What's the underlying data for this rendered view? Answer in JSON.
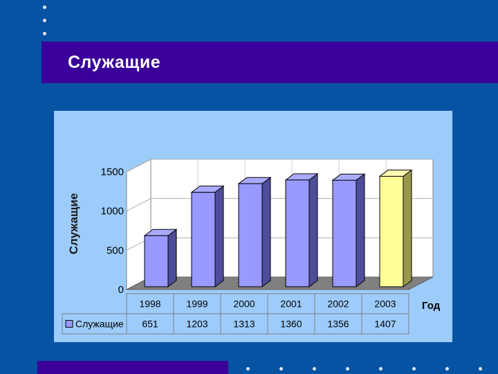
{
  "slide": {
    "title": "Служащие"
  },
  "colors": {
    "background": "#0753a3",
    "band": "#3a0099",
    "panel": "#9dccfa",
    "bar": "#9999ff",
    "highlight_bar": "#ffff99"
  },
  "chart_data": {
    "type": "bar",
    "categories": [
      "1998",
      "1999",
      "2000",
      "2001",
      "2002",
      "2003"
    ],
    "series": [
      {
        "name": "Служащие",
        "values": [
          651,
          1203,
          1313,
          1360,
          1356,
          1407
        ]
      }
    ],
    "highlight_category": "2003",
    "ylabel": "Служащие",
    "xlabel": "Год",
    "ylim": [
      0,
      1500
    ],
    "yticks": [
      0,
      500,
      1000,
      1500
    ],
    "grid": true,
    "data_table": true,
    "three_d": true
  }
}
